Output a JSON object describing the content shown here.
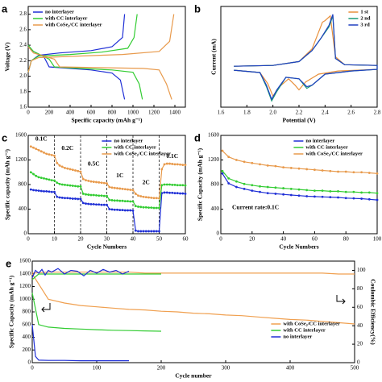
{
  "chart_data": [
    {
      "type": "line",
      "panel": "a",
      "xlabel": "Specific capacity (mAh g⁻¹)",
      "ylabel": "Voltage (V)",
      "xlim": [
        0,
        1500
      ],
      "ylim": [
        1.6,
        2.9
      ],
      "xticks": [
        0,
        200,
        400,
        600,
        800,
        1000,
        1200,
        1400
      ],
      "yticks": [
        1.6,
        1.8,
        {
          "value": 2,
          "label": "2.0"
        },
        2.2,
        2.4,
        2.6,
        2.8
      ],
      "legend": "upper left",
      "series": [
        {
          "name": "no interlayer",
          "color": "#1f2fd6",
          "x": [
            0,
            30,
            100,
            300,
            600,
            800,
            900,
            920,
            null,
            0,
            50,
            150,
            200,
            400,
            600,
            800,
            880,
            920
          ],
          "values": [
            2.05,
            2.2,
            2.27,
            2.3,
            2.33,
            2.38,
            2.5,
            2.8,
            null,
            2.38,
            2.32,
            2.25,
            2.12,
            2.1,
            2.08,
            2.04,
            1.95,
            1.7
          ]
        },
        {
          "name": "with CC interlayer",
          "color": "#33cc33",
          "x": [
            0,
            30,
            100,
            400,
            700,
            950,
            1010,
            1040,
            null,
            0,
            50,
            200,
            250,
            500,
            800,
            1000,
            1060,
            1090
          ],
          "values": [
            2.05,
            2.2,
            2.26,
            2.28,
            2.31,
            2.36,
            2.5,
            2.8,
            null,
            2.4,
            2.32,
            2.22,
            2.12,
            2.1,
            2.08,
            2.05,
            1.9,
            1.7
          ]
        },
        {
          "name": "with CoSe₂/CC interlayer",
          "color": "#e89a4c",
          "x": [
            0,
            30,
            100,
            500,
            900,
            1250,
            1350,
            1390,
            null,
            0,
            50,
            250,
            300,
            700,
            1100,
            1250,
            1320,
            1370
          ],
          "values": [
            2.05,
            2.2,
            2.24,
            2.26,
            2.28,
            2.32,
            2.45,
            2.8,
            null,
            2.38,
            2.3,
            2.22,
            2.12,
            2.11,
            2.1,
            2.08,
            1.9,
            1.7
          ]
        }
      ]
    },
    {
      "type": "line",
      "panel": "b",
      "xlabel": "Potential (V)",
      "ylabel": "Current (mA)",
      "xlim": [
        1.6,
        2.8
      ],
      "ylim": [
        -2.6,
        3.8
      ],
      "xticks": [
        1.6,
        1.8,
        {
          "value": 2,
          "label": "2.0"
        },
        2.2,
        2.4,
        2.6,
        2.8
      ],
      "legend": "upper right",
      "series": [
        {
          "name": "1 st",
          "color": "#e8903c",
          "x": [
            1.7,
            1.9,
            1.96,
            2.0,
            2.05,
            2.12,
            2.17,
            2.2,
            2.25,
            2.35,
            2.5,
            2.8,
            2.8,
            2.55,
            2.48,
            2.44,
            2.4,
            2.38,
            2.3,
            2.2,
            2.0,
            1.7
          ],
          "values": [
            -0.25,
            -0.4,
            -1.1,
            -1.9,
            -1.3,
            -0.8,
            -1.2,
            -1.5,
            -1.0,
            -0.5,
            -0.3,
            -0.2,
            0.05,
            0.1,
            0.6,
            3.2,
            2.9,
            2.8,
            1.1,
            0.3,
            0.05,
            0.0
          ]
        },
        {
          "name": "2 nd",
          "color": "#1a9a78",
          "x": [
            1.7,
            1.9,
            1.95,
            1.99,
            2.03,
            2.1,
            2.2,
            2.26,
            2.3,
            2.4,
            2.6,
            2.8,
            2.8,
            2.55,
            2.48,
            2.46,
            2.43,
            2.37,
            2.3,
            2.2,
            2.0,
            1.7
          ],
          "values": [
            -0.25,
            -0.4,
            -1.3,
            -2.2,
            -1.6,
            -0.7,
            -0.8,
            -1.4,
            -1.2,
            -0.5,
            -0.3,
            -0.2,
            0.05,
            0.1,
            0.5,
            3.2,
            2.5,
            1.8,
            1.0,
            0.3,
            0.05,
            0.0
          ]
        },
        {
          "name": "3 rd",
          "color": "#2040c0",
          "x": [
            1.7,
            1.9,
            1.95,
            1.99,
            2.03,
            2.1,
            2.2,
            2.26,
            2.3,
            2.4,
            2.6,
            2.8,
            2.8,
            2.55,
            2.48,
            2.46,
            2.43,
            2.37,
            2.3,
            2.2,
            2.0,
            1.7
          ],
          "values": [
            -0.25,
            -0.4,
            -1.2,
            -2.1,
            -1.5,
            -0.7,
            -0.8,
            -1.3,
            -1.2,
            -0.5,
            -0.3,
            -0.2,
            0.05,
            0.1,
            0.5,
            3.3,
            2.6,
            1.8,
            1.0,
            0.3,
            0.05,
            0.0
          ]
        }
      ]
    },
    {
      "type": "line",
      "panel": "c",
      "xlabel": "Cycle Numbers",
      "ylabel": "Specific capacity (mAh g⁻¹)",
      "xlim": [
        0,
        60
      ],
      "ylim": [
        0,
        1600
      ],
      "xticks": [
        0,
        10,
        20,
        30,
        40,
        50,
        60
      ],
      "yticks": [
        0,
        400,
        800,
        1200,
        1600
      ],
      "legend": "upper right",
      "markers": true,
      "rate_boundaries": [
        10,
        20,
        30,
        40,
        50
      ],
      "rate_labels": [
        "0.1C",
        "0.2C",
        "0.5C",
        "1C",
        "2C",
        "0.1C"
      ],
      "x": [
        1,
        2,
        3,
        4,
        5,
        6,
        7,
        8,
        9,
        10,
        11,
        12,
        13,
        14,
        15,
        16,
        17,
        18,
        19,
        20,
        21,
        22,
        23,
        24,
        25,
        26,
        27,
        28,
        29,
        30,
        31,
        32,
        33,
        34,
        35,
        36,
        37,
        38,
        39,
        40,
        41,
        42,
        43,
        44,
        45,
        46,
        47,
        48,
        49,
        50,
        51,
        52,
        53,
        54,
        55,
        56,
        57,
        58,
        59,
        60
      ],
      "series": [
        {
          "name": "no interlayer",
          "color": "#1f2fd6",
          "values": [
            720,
            710,
            705,
            700,
            695,
            690,
            690,
            685,
            680,
            680,
            600,
            590,
            585,
            580,
            580,
            575,
            570,
            570,
            565,
            565,
            500,
            490,
            485,
            480,
            480,
            475,
            475,
            470,
            470,
            470,
            400,
            395,
            390,
            390,
            385,
            385,
            380,
            380,
            380,
            375,
            50,
            40,
            40,
            40,
            40,
            40,
            40,
            40,
            40,
            40,
            660,
            670,
            670,
            665,
            665,
            660,
            660,
            655,
            655,
            650
          ]
        },
        {
          "name": "with CC interlayer",
          "color": "#33cc33",
          "values": [
            1000,
            970,
            940,
            920,
            910,
            900,
            890,
            880,
            870,
            865,
            830,
            810,
            800,
            795,
            790,
            785,
            780,
            775,
            770,
            770,
            650,
            640,
            635,
            630,
            630,
            625,
            620,
            620,
            615,
            615,
            550,
            545,
            540,
            540,
            535,
            535,
            530,
            530,
            525,
            525,
            450,
            440,
            435,
            430,
            430,
            425,
            425,
            420,
            420,
            420,
            790,
            800,
            800,
            800,
            795,
            795,
            790,
            790,
            790,
            785
          ]
        },
        {
          "name": "with CoSe₂/CC interlayer",
          "color": "#e89a4c",
          "values": [
            1420,
            1400,
            1380,
            1360,
            1340,
            1320,
            1300,
            1290,
            1280,
            1270,
            1150,
            1110,
            1090,
            1070,
            1060,
            1050,
            1040,
            1030,
            1020,
            1010,
            890,
            870,
            860,
            850,
            845,
            840,
            835,
            830,
            825,
            820,
            760,
            750,
            745,
            740,
            735,
            730,
            725,
            720,
            715,
            710,
            650,
            620,
            610,
            600,
            595,
            590,
            585,
            580,
            580,
            575,
            1050,
            1130,
            1140,
            1140,
            1135,
            1130,
            1130,
            1125,
            1120,
            1120
          ]
        }
      ]
    },
    {
      "type": "line",
      "panel": "d",
      "xlabel": "Cycle Numbers",
      "ylabel": "Specific Capacity (mAh g⁻¹)",
      "note": "Current rate:0.1C",
      "xlim": [
        0,
        100
      ],
      "ylim": [
        0,
        1600
      ],
      "xticks": [
        0,
        20,
        40,
        60,
        80,
        100
      ],
      "yticks": [
        0,
        400,
        800,
        1200,
        1600
      ],
      "legend": "upper right",
      "markers": true,
      "x": [
        1,
        5,
        10,
        15,
        20,
        25,
        30,
        35,
        40,
        45,
        50,
        55,
        60,
        65,
        70,
        75,
        80,
        85,
        90,
        95,
        100
      ],
      "series": [
        {
          "name": "no interlayer",
          "color": "#1f2fd6",
          "values": [
            980,
            820,
            760,
            730,
            700,
            680,
            660,
            650,
            640,
            630,
            620,
            610,
            605,
            600,
            595,
            590,
            580,
            575,
            570,
            560,
            550
          ]
        },
        {
          "name": "with CC interlayer",
          "color": "#33cc33",
          "values": [
            1020,
            900,
            850,
            810,
            790,
            770,
            760,
            750,
            740,
            730,
            720,
            710,
            700,
            700,
            690,
            690,
            680,
            680,
            670,
            670,
            660
          ]
        },
        {
          "name": "with CoSe₂/CC interlayer",
          "color": "#e89a4c",
          "values": [
            1350,
            1250,
            1200,
            1170,
            1150,
            1130,
            1110,
            1100,
            1080,
            1070,
            1060,
            1050,
            1040,
            1030,
            1020,
            1010,
            1010,
            1000,
            1000,
            990,
            980
          ]
        }
      ]
    },
    {
      "type": "line",
      "panel": "e",
      "xlabel": "Cycle number",
      "ylabel": "Specific Capacity (mAh g⁻¹)",
      "y2label": "Coulombic Efficiency(%)",
      "xlim": [
        0,
        500
      ],
      "ylim": [
        0,
        1600
      ],
      "y2lim": [
        0,
        110
      ],
      "xticks": [
        0,
        100,
        200,
        300,
        400,
        500
      ],
      "yticks": [
        0,
        200,
        400,
        600,
        800,
        1000,
        1200,
        1400,
        1600
      ],
      "y2ticks": [
        0,
        20,
        40,
        60,
        80,
        100
      ],
      "legend": "lower right",
      "series": [
        {
          "name": "with CoSe₂/CC interlayer",
          "color": "#f0a050",
          "x": [
            0,
            25,
            50,
            75,
            100,
            125,
            150,
            175,
            200,
            225,
            250,
            275,
            300,
            325,
            350,
            375,
            400,
            425,
            450,
            475,
            500
          ],
          "values": [
            1400,
            1000,
            940,
            900,
            880,
            860,
            840,
            830,
            810,
            800,
            780,
            770,
            750,
            740,
            720,
            700,
            680,
            670,
            650,
            630,
            610
          ]
        },
        {
          "name": "with CC interlayer",
          "color": "#33cc33",
          "x": [
            0,
            10,
            25,
            50,
            75,
            100,
            125,
            150,
            175,
            200
          ],
          "values": [
            1100,
            600,
            560,
            540,
            530,
            520,
            510,
            505,
            500,
            495
          ]
        },
        {
          "name": "no interlayer",
          "color": "#1f2fd6",
          "x": [
            0,
            5,
            10,
            25,
            50,
            75,
            100,
            125,
            150
          ],
          "values": [
            600,
            100,
            40,
            35,
            35,
            30,
            30,
            30,
            30
          ]
        },
        {
          "axis": "y2",
          "color": "#f0a050",
          "x": [
            0,
            25,
            50,
            75,
            100,
            125,
            150,
            175,
            200,
            225,
            250,
            275,
            300,
            325,
            350,
            375,
            400,
            425,
            450,
            475,
            500
          ],
          "values": [
            97,
            98,
            98,
            98,
            98,
            98,
            98,
            97,
            97,
            97,
            97,
            97,
            97,
            97,
            97,
            97,
            97,
            97,
            97,
            96,
            96
          ]
        },
        {
          "axis": "y2",
          "color": "#33cc33",
          "x": [
            0,
            10,
            25,
            50,
            75,
            100,
            125,
            150,
            175,
            200
          ],
          "values": [
            90,
            96,
            96,
            96,
            96,
            96,
            96,
            96,
            96,
            96
          ]
        },
        {
          "axis": "y2",
          "color": "#1f2fd6",
          "x": [
            0,
            5,
            10,
            15,
            20,
            25,
            30,
            40,
            50,
            60,
            70,
            80,
            90,
            100,
            110,
            120,
            130,
            140,
            150
          ],
          "values": [
            92,
            100,
            97,
            101,
            95,
            100,
            98,
            102,
            96,
            100,
            99,
            94,
            100,
            97,
            101,
            98,
            100,
            96,
            99
          ]
        }
      ]
    }
  ]
}
